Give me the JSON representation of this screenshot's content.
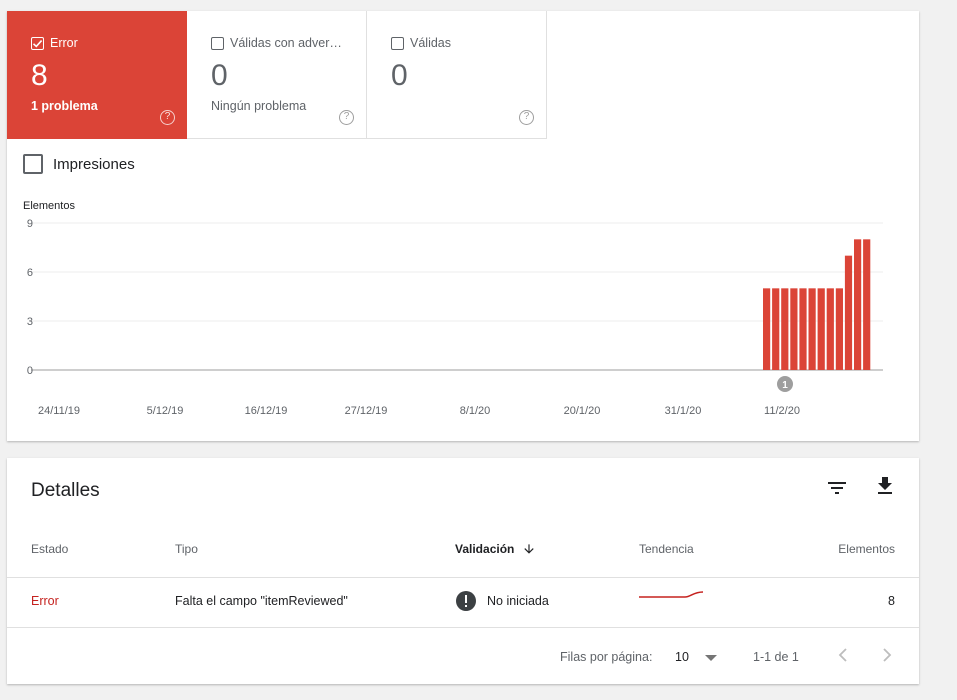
{
  "summary_tiles": [
    {
      "label": "Error",
      "count": "8",
      "sub": "1 problema",
      "checked": true
    },
    {
      "label": "Válidas con adver…",
      "count": "0",
      "sub": "Ningún problema",
      "checked": false
    },
    {
      "label": "Válidas",
      "count": "0",
      "sub": "",
      "checked": false
    }
  ],
  "help_glyph": "?",
  "impressions_label": "Impresiones",
  "chart_data": {
    "type": "bar",
    "ylabel": "Elementos",
    "yticks": [
      "9",
      "6",
      "3",
      "0"
    ],
    "ylim": [
      0,
      9
    ],
    "xticks": [
      "24/11/19",
      "5/12/19",
      "16/12/19",
      "27/12/19",
      "8/1/20",
      "20/1/20",
      "31/1/20",
      "11/2/20"
    ],
    "series": [
      {
        "color": "#db4437",
        "values": [
          5,
          5,
          5,
          5,
          5,
          5,
          5,
          5,
          5,
          7,
          8,
          8
        ]
      }
    ],
    "annotation": "1",
    "grid": true
  },
  "details": {
    "title": "Detalles",
    "filter_icon": "filter-icon",
    "download_icon": "download-icon",
    "columns": {
      "estado": "Estado",
      "tipo": "Tipo",
      "validacion": "Validación",
      "tendencia": "Tendencia",
      "elementos": "Elementos"
    },
    "rows": [
      {
        "estado": "Error",
        "tipo": "Falta el campo \"itemReviewed\"",
        "validacion": "No iniciada",
        "elementos": "8"
      }
    ],
    "status_colors": {
      "error": "#c5221f",
      "accent": "#db4437"
    }
  },
  "pagination": {
    "rows_per_page_label": "Filas por página:",
    "rows_per_page": "10",
    "range": "1-1 de 1"
  }
}
